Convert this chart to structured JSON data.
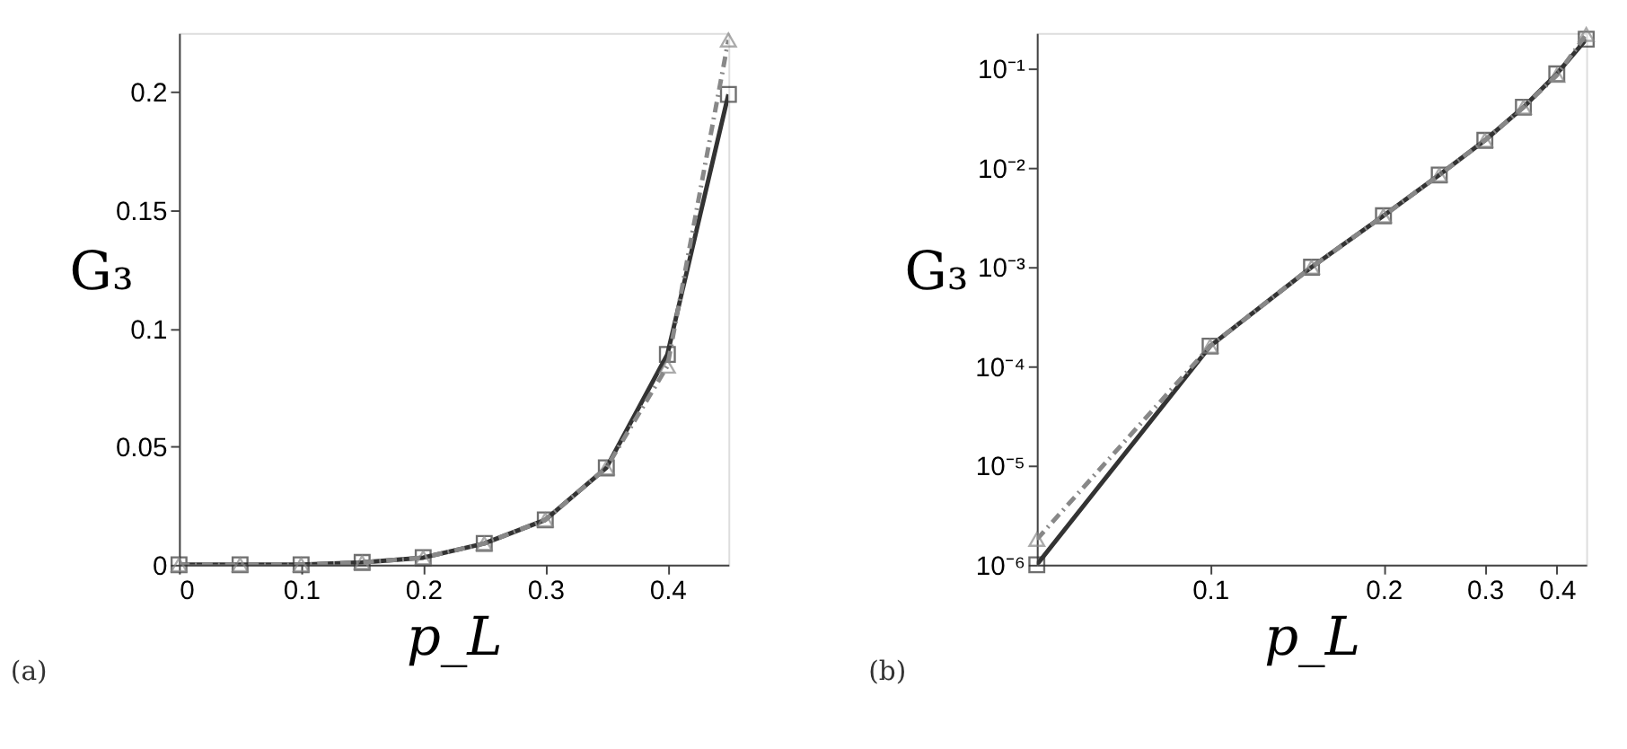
{
  "chart_data": [
    {
      "type": "line",
      "xlabel": "p_L",
      "ylabel": "G₃",
      "annotations": [
        "(a)"
      ],
      "x": [
        0,
        0.05,
        0.1,
        0.15,
        0.2,
        0.25,
        0.3,
        0.35,
        0.4,
        0.45
      ],
      "series": [
        {
          "color": "#333333",
          "line_style": "solid",
          "marker": "square",
          "values": [
            0,
            0,
            0,
            0.001,
            0.003,
            0.009,
            0.019,
            0.041,
            0.089,
            0.199
          ]
        },
        {
          "color": "#888888",
          "line_style": "dashed",
          "marker": "triangle",
          "values": [
            0,
            0,
            0,
            0.001,
            0.003,
            0.009,
            0.019,
            0.041,
            0.084,
            0.222
          ]
        }
      ],
      "xlim": [
        0,
        0.45
      ],
      "xticks": [
        0,
        0.1,
        0.2,
        0.3,
        0.4
      ],
      "ylim": [
        0,
        0.225
      ],
      "yticks": [
        0,
        0.05,
        0.1,
        0.15,
        0.2
      ],
      "grid": false
    },
    {
      "type": "line",
      "xlabel": "p_L",
      "ylabel": "G₃",
      "annotations": [
        "(b)"
      ],
      "log": "xy",
      "x": [
        0.05,
        0.1,
        0.15,
        0.2,
        0.25,
        0.3,
        0.35,
        0.4,
        0.45
      ],
      "series": [
        {
          "color": "#333333",
          "line_style": "solid",
          "marker": "square",
          "values": [
            1e-06,
            0.00016,
            0.001,
            0.0033,
            0.0085,
            0.019,
            0.041,
            0.089,
            0.199
          ]
        },
        {
          "color": "#888888",
          "line_style": "dashed",
          "marker": "triangle",
          "values": [
            1.8e-06,
            0.00016,
            0.001,
            0.0033,
            0.0085,
            0.019,
            0.041,
            0.086,
            0.222
          ]
        }
      ],
      "xlim": [
        0.05,
        0.45
      ],
      "xticks": [
        0.1,
        0.2,
        0.3,
        0.4
      ],
      "ylim": [
        1e-06,
        0.23
      ],
      "yticks": [
        {
          "value": 1e-06,
          "label": "10⁻⁶"
        },
        {
          "value": 1e-05,
          "label": "10⁻⁵"
        },
        {
          "value": 0.0001,
          "label": "10⁻⁴"
        },
        {
          "value": 0.001,
          "label": "10⁻³"
        },
        {
          "value": 0.01,
          "label": "10⁻²"
        },
        {
          "value": 0.1,
          "label": "10⁻¹"
        }
      ],
      "grid": false
    }
  ]
}
